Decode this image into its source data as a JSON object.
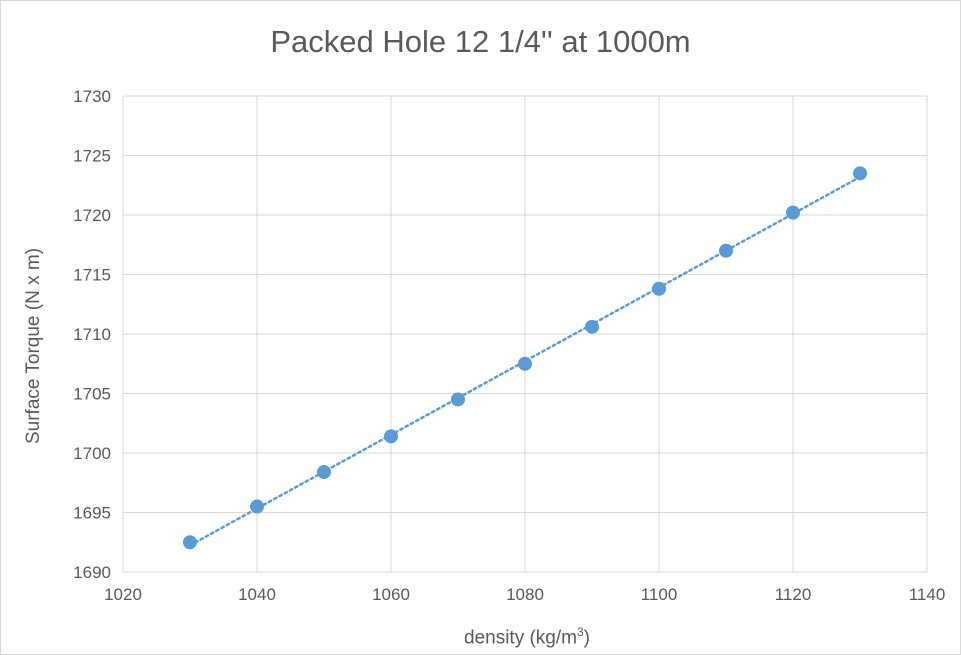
{
  "chart_data": {
    "type": "scatter",
    "title": "Packed Hole 12 1/4'' at 1000m",
    "xlabel_main": "density (kg/m",
    "xlabel_sup": "3",
    "xlabel_end": ")",
    "ylabel": "Surface Torque (N x m)",
    "xlim": [
      1020,
      1140
    ],
    "ylim": [
      1690,
      1730
    ],
    "xticks": [
      1020,
      1040,
      1060,
      1080,
      1100,
      1120,
      1140
    ],
    "yticks": [
      1690,
      1695,
      1700,
      1705,
      1710,
      1715,
      1720,
      1725,
      1730
    ],
    "grid": true,
    "trendline": "linear-dotted",
    "colors": {
      "marker": "#5b9bd5",
      "trendline": "#5b9bd5",
      "grid": "#d9d9d9"
    },
    "series": [
      {
        "x": [
          1030,
          1040,
          1050,
          1060,
          1070,
          1080,
          1090,
          1100,
          1110,
          1120,
          1130
        ],
        "y": [
          1692.5,
          1695.5,
          1698.4,
          1701.4,
          1704.5,
          1707.5,
          1710.6,
          1713.8,
          1717.0,
          1720.2,
          1723.5
        ]
      }
    ]
  }
}
